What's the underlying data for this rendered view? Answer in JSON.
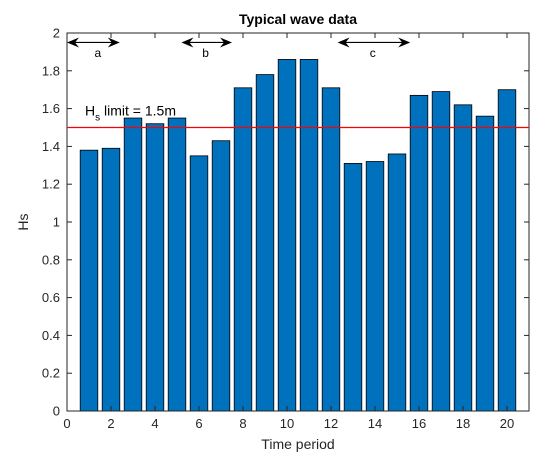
{
  "chart_data": {
    "type": "bar",
    "title": "Typical wave data",
    "xlabel": "Time period",
    "ylabel": "Hs",
    "x": [
      1,
      2,
      3,
      4,
      5,
      6,
      7,
      8,
      9,
      10,
      11,
      12,
      13,
      14,
      15,
      16,
      17,
      18,
      19,
      20
    ],
    "values": [
      1.38,
      1.39,
      1.55,
      1.52,
      1.55,
      1.35,
      1.43,
      1.71,
      1.78,
      1.86,
      1.86,
      1.71,
      1.31,
      1.32,
      1.36,
      1.67,
      1.69,
      1.62,
      1.56,
      1.7
    ],
    "xlim": [
      0,
      21
    ],
    "ylim": [
      0,
      2
    ],
    "xticks": [
      0,
      2,
      4,
      6,
      8,
      10,
      12,
      14,
      16,
      18,
      20
    ],
    "xtick_labels": [
      "0",
      "2",
      "4",
      "6",
      "8",
      "10",
      "12",
      "14",
      "16",
      "18",
      "20"
    ],
    "yticks": [
      0,
      0.2,
      0.4,
      0.6,
      0.8,
      1,
      1.2,
      1.4,
      1.6,
      1.8,
      2
    ],
    "ytick_labels": [
      "0",
      "0.2",
      "0.4",
      "0.6",
      "0.8",
      "1",
      "1.2",
      "1.4",
      "1.6",
      "1.8",
      "2"
    ],
    "grid": false,
    "bar_color": "#0072BD",
    "bar_edge_color": "#000000",
    "reference_line": {
      "y": 1.5,
      "color": "#FF0000",
      "label_main": "H",
      "label_sub": "s",
      "label_rest": " limit = 1.5m",
      "label_x": 1,
      "label_y": 1.59
    },
    "annotations": [
      {
        "label": "a",
        "x_start": 0,
        "x_end": 2.4,
        "y": 1.95,
        "label_x": 1.4,
        "label_y": 1.9
      },
      {
        "label": "b",
        "x_start": 5.2,
        "x_end": 7.5,
        "y": 1.95,
        "label_x": 6.3,
        "label_y": 1.9
      },
      {
        "label": "c",
        "x_start": 12.3,
        "x_end": 15.6,
        "y": 1.95,
        "label_x": 13.9,
        "label_y": 1.9
      }
    ]
  }
}
